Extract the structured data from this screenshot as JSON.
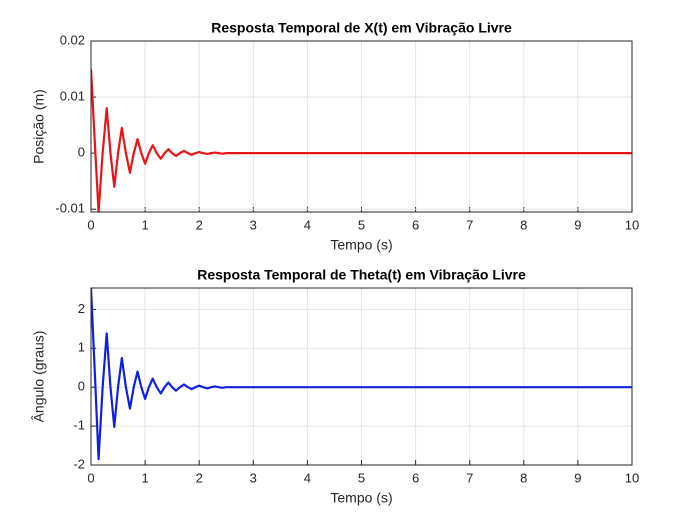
{
  "chart_data": [
    {
      "type": "line",
      "title": "Resposta Temporal de X(t) em Vibração Livre",
      "x_label": "Tempo (s)",
      "y_label": "Posição (m)",
      "x": [
        0,
        0.07,
        0.14,
        0.215,
        0.29,
        0.36,
        0.43,
        0.5,
        0.57,
        0.645,
        0.72,
        0.79,
        0.86,
        0.93,
        1.0,
        1.07,
        1.14,
        1.215,
        1.29,
        1.36,
        1.43,
        1.5,
        1.57,
        1.645,
        1.72,
        1.79,
        1.86,
        1.93,
        2.0,
        2.07,
        2.15,
        2.22,
        2.29,
        2.36,
        2.43,
        2.5,
        3,
        10
      ],
      "series": [
        {
          "color": "#e8141a",
          "values": [
            0.015,
            0.002,
            -0.0105,
            0,
            0.008,
            0,
            -0.006,
            0,
            0.0045,
            0,
            -0.0035,
            0,
            0.0025,
            0,
            -0.0019,
            0,
            0.0014,
            0,
            -0.001,
            0,
            0.0007,
            0,
            -0.0005,
            0,
            0.0004,
            0,
            -0.0003,
            0,
            0.0002,
            0,
            -0.00015,
            0,
            0.0001,
            0,
            -0.0001,
            0,
            0,
            0
          ]
        }
      ],
      "xlim": [
        0,
        10
      ],
      "xticks": [
        0,
        1,
        2,
        3,
        4,
        5,
        6,
        7,
        8,
        9,
        10
      ],
      "ylim": [
        -0.0105,
        0.02
      ],
      "yticks": [
        -0.01,
        0,
        0.01,
        0.02
      ],
      "grid": true
    },
    {
      "type": "line",
      "title": "Resposta Temporal de Theta(t) em Vibração Livre",
      "x_label": "Tempo (s)",
      "y_label": "Ângulo (graus)",
      "x": [
        0,
        0.07,
        0.14,
        0.215,
        0.29,
        0.36,
        0.43,
        0.5,
        0.57,
        0.645,
        0.72,
        0.79,
        0.86,
        0.93,
        1.0,
        1.07,
        1.14,
        1.215,
        1.29,
        1.36,
        1.43,
        1.5,
        1.57,
        1.645,
        1.72,
        1.79,
        1.86,
        1.93,
        2.0,
        2.07,
        2.15,
        2.22,
        2.29,
        2.36,
        2.43,
        2.5,
        3,
        10
      ],
      "series": [
        {
          "color": "#1020e0",
          "values": [
            2.55,
            0.4,
            -1.85,
            0,
            1.38,
            0,
            -1.02,
            0,
            0.75,
            0,
            -0.55,
            0,
            0.4,
            0,
            -0.3,
            0,
            0.22,
            0,
            -0.16,
            0,
            0.12,
            0,
            -0.09,
            0,
            0.07,
            0,
            -0.05,
            0,
            0.04,
            0,
            -0.03,
            0,
            0.02,
            0,
            -0.015,
            0,
            0,
            0
          ]
        }
      ],
      "xlim": [
        0,
        10
      ],
      "xticks": [
        0,
        1,
        2,
        3,
        4,
        5,
        6,
        7,
        8,
        9,
        10
      ],
      "ylim": [
        -2,
        2.55
      ],
      "yticks": [
        -2,
        -1,
        0,
        1,
        2
      ],
      "grid": true
    }
  ]
}
